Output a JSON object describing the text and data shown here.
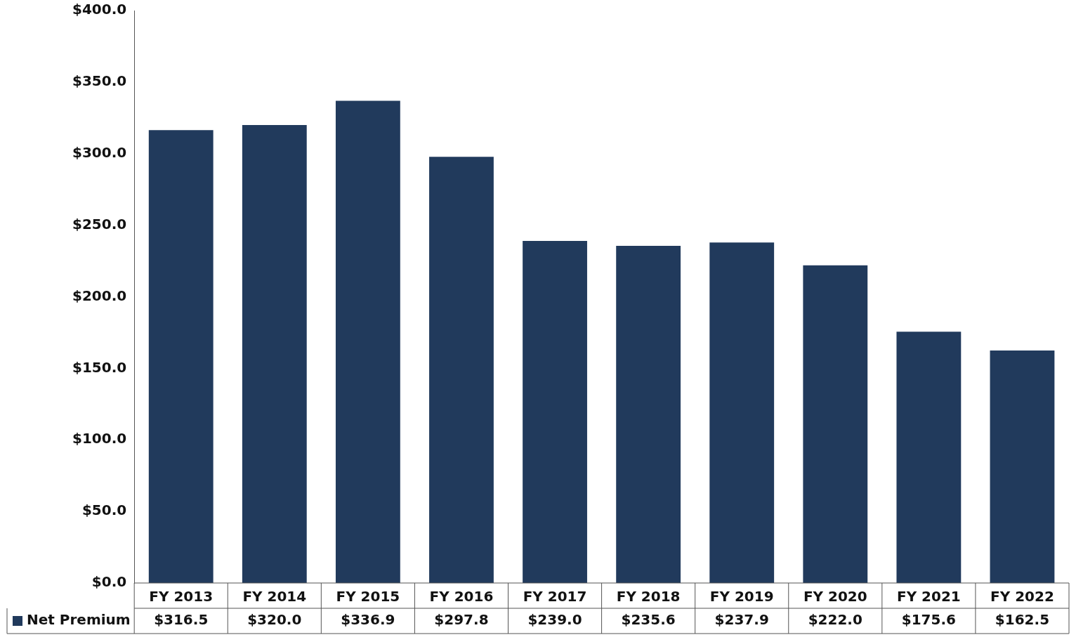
{
  "chart_data": {
    "type": "bar",
    "categories": [
      "FY 2013",
      "FY 2014",
      "FY 2015",
      "FY 2016",
      "FY 2017",
      "FY 2018",
      "FY 2019",
      "FY 2020",
      "FY 2021",
      "FY 2022"
    ],
    "series": [
      {
        "name": "Net Premium",
        "color": "#213a5c",
        "values": [
          316.5,
          320.0,
          336.9,
          297.8,
          239.0,
          235.6,
          237.9,
          222.0,
          175.6,
          162.5
        ],
        "value_labels": [
          "$316.5",
          "$320.0",
          "$336.9",
          "$297.8",
          "$239.0",
          "$235.6",
          "$237.9",
          "$222.0",
          "$175.6",
          "$162.5"
        ]
      }
    ],
    "ylim": [
      0,
      400
    ],
    "yticks": [
      {
        "value": 0,
        "label": "$0.0"
      },
      {
        "value": 50,
        "label": "$50.0"
      },
      {
        "value": 100,
        "label": "$100.0"
      },
      {
        "value": 150,
        "label": "$150.0"
      },
      {
        "value": 200,
        "label": "$200.0"
      },
      {
        "value": 250,
        "label": "$250.0"
      },
      {
        "value": 300,
        "label": "$300.0"
      },
      {
        "value": 350,
        "label": "$350.0"
      },
      {
        "value": 400,
        "label": "$400.0"
      }
    ],
    "grid": false,
    "legend": "bottom left"
  }
}
